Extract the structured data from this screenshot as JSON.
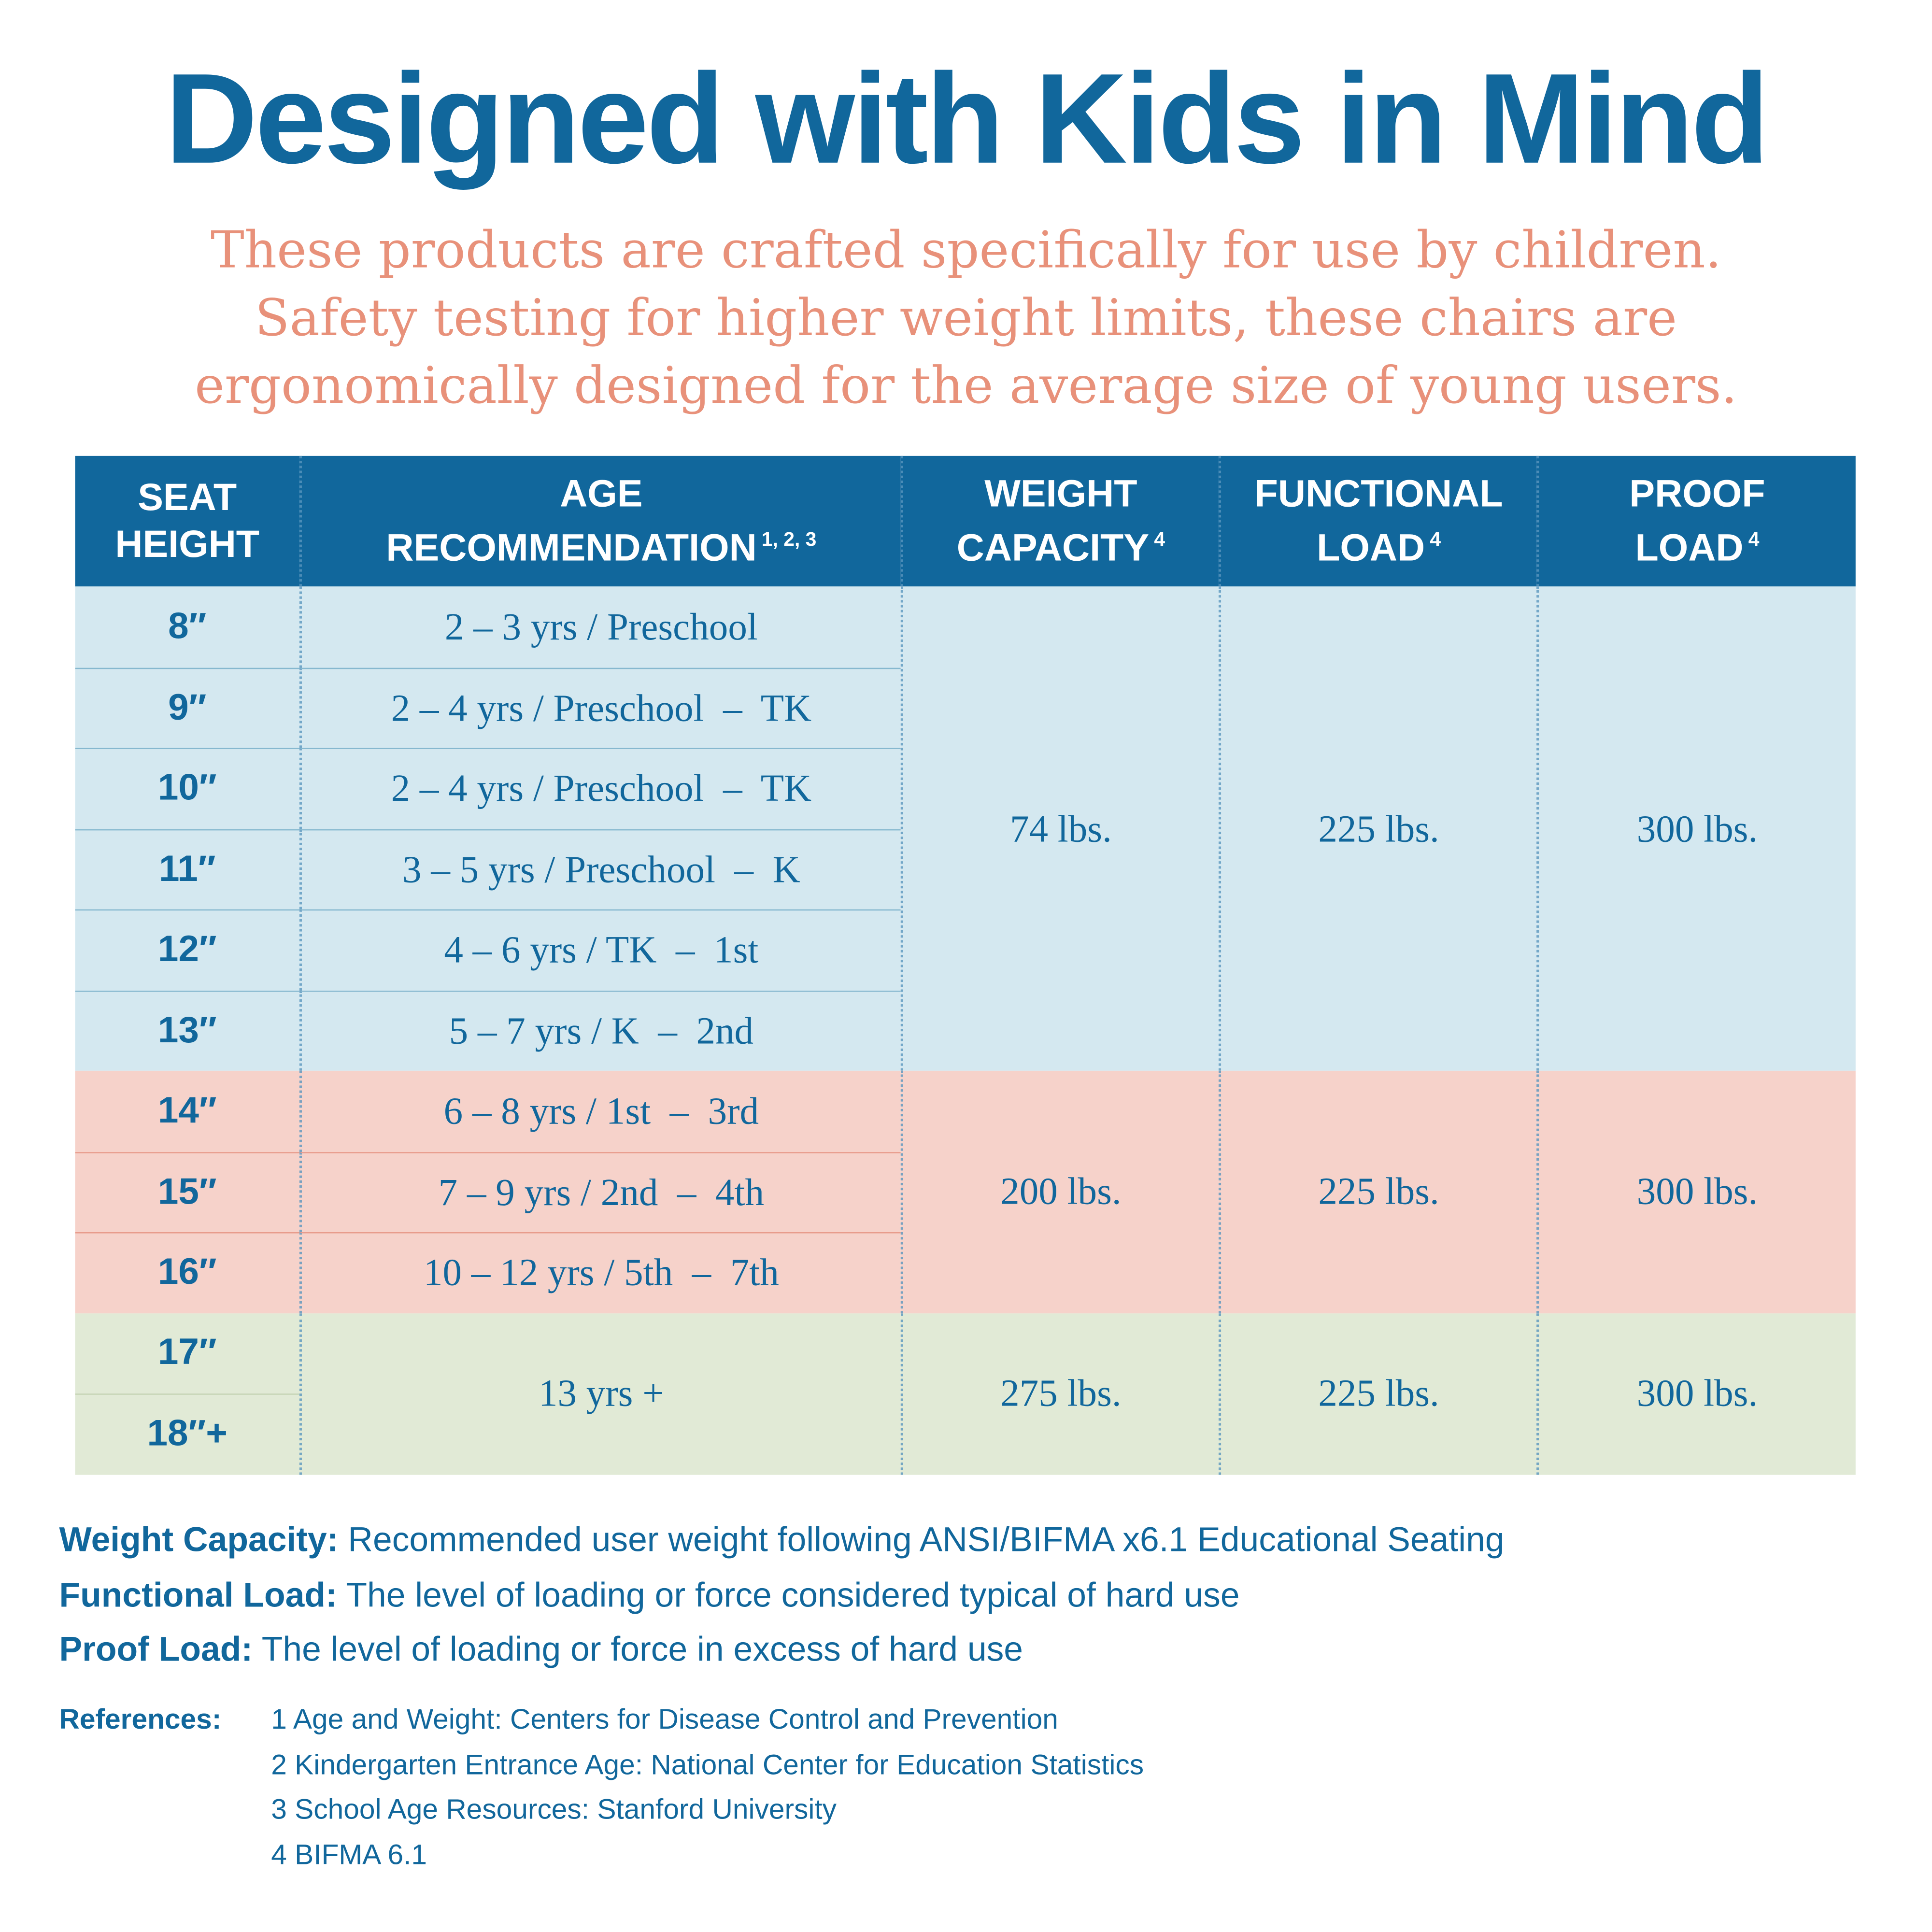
{
  "title": "Designed with Kids in Mind",
  "subtitle": [
    "These products are crafted specifically for use by children.",
    "Safety testing for higher weight limits, these chairs are",
    "ergonomically designed for the average size of young users."
  ],
  "colors": {
    "primary": "#11679c",
    "accent": "#e8917a",
    "blue_group": "#d4e8f0",
    "pink_group": "#f6d2ca",
    "green_group": "#e1ead6"
  },
  "table": {
    "headers": [
      {
        "lines": [
          "SEAT",
          "HEIGHT"
        ],
        "sup": ""
      },
      {
        "lines": [
          "AGE",
          "RECOMMENDATION"
        ],
        "sup": "1, 2, 3"
      },
      {
        "lines": [
          "WEIGHT",
          "CAPACITY"
        ],
        "sup": "4"
      },
      {
        "lines": [
          "FUNCTIONAL",
          "LOAD"
        ],
        "sup": "4"
      },
      {
        "lines": [
          "PROOF",
          "LOAD"
        ],
        "sup": "4"
      }
    ],
    "groups": [
      {
        "color": "#d4e8f0",
        "line": "#86b8cf",
        "seat_heights": [
          "8″",
          "9″",
          "10″",
          "11″",
          "12″",
          "13″"
        ],
        "ages": [
          "2 – 3 yrs / Preschool",
          "2 – 4 yrs / Preschool  –  TK",
          "2 – 4 yrs / Preschool  –  TK",
          "3 – 5 yrs / Preschool  –  K",
          "4 – 6 yrs / TK  –  1st",
          "5 – 7 yrs / K  –  2nd"
        ],
        "weight_capacity": "74 lbs.",
        "functional_load": "225 lbs.",
        "proof_load": "300 lbs."
      },
      {
        "color": "#f6d2ca",
        "line": "#e89c8c",
        "seat_heights": [
          "14″",
          "15″",
          "16″"
        ],
        "ages": [
          "6 – 8 yrs / 1st  –  3rd",
          "7 – 9 yrs / 2nd  –  4th",
          "10 – 12 yrs / 5th  –  7th"
        ],
        "weight_capacity": "200 lbs.",
        "functional_load": "225 lbs.",
        "proof_load": "300 lbs."
      },
      {
        "color": "#e1ead6",
        "line": "#c5d4b4",
        "seat_heights": [
          "17″",
          "18″+"
        ],
        "ages": [
          "13 yrs +"
        ],
        "weight_capacity": "275 lbs.",
        "functional_load": "225 lbs.",
        "proof_load": "300 lbs."
      }
    ]
  },
  "definitions": [
    {
      "term": "Weight Capacity:",
      "text": " Recommended user weight following ANSI/BIFMA x6.1 Educational Seating"
    },
    {
      "term": "Functional Load:",
      "text": " The level of loading or force considered typical of hard use"
    },
    {
      "term": "Proof Load:",
      "text": " The level of loading or force in excess of hard use"
    }
  ],
  "references": {
    "label": "References:",
    "items": [
      "1 Age and Weight: Centers for Disease Control and Prevention",
      "2 Kindergarten Entrance Age: National Center for Education Statistics",
      "3 School Age Resources: Stanford University",
      "4 BIFMA 6.1"
    ]
  }
}
